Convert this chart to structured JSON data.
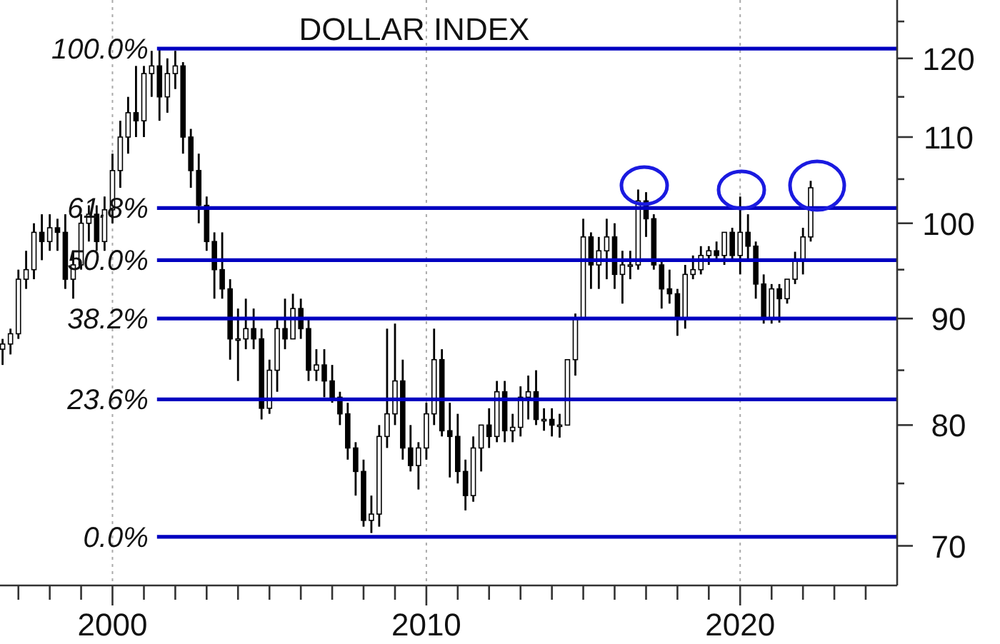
{
  "chart_data": {
    "type": "candlestick",
    "title": "DOLLAR INDEX",
    "log": true,
    "grid": "x",
    "color": "#000000",
    "x": [
      "1996-07",
      "1996-10",
      "1997-01",
      "1997-04",
      "1997-07",
      "1997-10",
      "1998-01",
      "1998-04",
      "1998-07",
      "1998-10",
      "1999-01",
      "1999-04",
      "1999-07",
      "1999-10",
      "2000-01",
      "2000-04",
      "2000-07",
      "2000-10",
      "2001-01",
      "2001-04",
      "2001-07",
      "2001-10",
      "2002-01",
      "2002-04",
      "2002-07",
      "2002-10",
      "2003-01",
      "2003-04",
      "2003-07",
      "2003-10",
      "2004-01",
      "2004-04",
      "2004-07",
      "2004-10",
      "2005-01",
      "2005-04",
      "2005-07",
      "2005-10",
      "2006-01",
      "2006-04",
      "2006-07",
      "2006-10",
      "2007-01",
      "2007-04",
      "2007-07",
      "2007-10",
      "2008-01",
      "2008-04",
      "2008-07",
      "2008-10",
      "2009-01",
      "2009-04",
      "2009-07",
      "2009-10",
      "2010-01",
      "2010-04",
      "2010-07",
      "2010-10",
      "2011-01",
      "2011-04",
      "2011-07",
      "2011-10",
      "2012-01",
      "2012-04",
      "2012-07",
      "2012-10",
      "2013-01",
      "2013-04",
      "2013-07",
      "2013-10",
      "2014-01",
      "2014-04",
      "2014-07",
      "2014-10",
      "2015-01",
      "2015-04",
      "2015-07",
      "2015-10",
      "2016-01",
      "2016-04",
      "2016-07",
      "2016-10",
      "2017-01",
      "2017-04",
      "2017-07",
      "2017-10",
      "2018-01",
      "2018-04",
      "2018-07",
      "2018-10",
      "2019-01",
      "2019-04",
      "2019-07",
      "2019-10",
      "2020-01",
      "2020-04",
      "2020-07",
      "2020-10",
      "2021-01",
      "2021-04",
      "2021-07",
      "2021-10",
      "2022-01",
      "2022-04"
    ],
    "ohlc": [
      [
        87,
        88,
        85.5,
        87.5
      ],
      [
        87.5,
        89,
        86.5,
        88.5
      ],
      [
        88.5,
        95,
        88,
        94
      ],
      [
        94,
        97,
        93,
        95
      ],
      [
        95,
        100,
        94,
        99
      ],
      [
        99,
        101,
        96,
        98
      ],
      [
        98,
        101,
        97,
        99.5
      ],
      [
        99.5,
        100.5,
        97,
        99
      ],
      [
        99,
        101,
        93,
        94
      ],
      [
        94,
        97,
        92,
        95.5
      ],
      [
        95.5,
        101,
        95,
        100
      ],
      [
        100,
        102,
        98,
        101
      ],
      [
        101,
        102,
        97,
        98
      ],
      [
        98,
        103,
        97,
        101.5
      ],
      [
        101.5,
        108,
        100,
        106
      ],
      [
        106,
        112,
        104,
        110
      ],
      [
        110,
        115,
        108,
        113
      ],
      [
        113,
        119,
        110,
        112
      ],
      [
        112,
        119,
        110,
        118
      ],
      [
        118,
        121,
        115,
        119
      ],
      [
        119,
        121.3,
        112,
        115
      ],
      [
        115,
        120,
        113,
        118
      ],
      [
        118,
        121,
        116,
        119
      ],
      [
        119,
        119.5,
        108,
        110
      ],
      [
        110,
        111,
        104,
        106
      ],
      [
        106,
        108,
        100,
        102
      ],
      [
        102,
        103,
        97,
        98
      ],
      [
        98,
        99,
        92,
        95
      ],
      [
        95,
        99,
        92,
        93
      ],
      [
        93,
        94,
        86,
        88
      ],
      [
        88,
        91,
        84,
        88
      ],
      [
        88,
        92,
        87,
        89
      ],
      [
        89,
        91,
        87,
        88
      ],
      [
        88,
        89,
        80.5,
        81.5
      ],
      [
        81.5,
        86,
        81,
        85
      ],
      [
        85,
        90,
        83,
        89
      ],
      [
        89,
        92,
        87,
        88
      ],
      [
        88,
        92.5,
        88,
        91
      ],
      [
        91,
        92,
        88,
        89
      ],
      [
        89,
        90,
        84,
        85
      ],
      [
        85,
        87,
        84,
        85.5
      ],
      [
        85.5,
        87,
        82.5,
        84
      ],
      [
        84,
        85.5,
        82,
        82.5
      ],
      [
        82.5,
        83,
        80,
        81
      ],
      [
        81,
        82,
        77,
        78
      ],
      [
        78,
        78.5,
        74,
        76
      ],
      [
        76,
        77,
        71.5,
        72
      ],
      [
        72,
        74,
        71,
        72.5
      ],
      [
        72.5,
        80,
        71.5,
        79
      ],
      [
        79,
        89,
        78,
        81
      ],
      [
        81,
        89.5,
        80,
        84
      ],
      [
        84,
        86,
        77,
        78
      ],
      [
        78,
        80,
        76,
        76.5
      ],
      [
        76.5,
        78.5,
        74.5,
        78
      ],
      [
        78,
        82,
        77,
        81
      ],
      [
        81,
        89,
        80,
        86
      ],
      [
        86,
        87,
        79,
        79.5
      ],
      [
        79.5,
        82,
        75.5,
        79
      ],
      [
        79,
        81,
        75,
        76
      ],
      [
        76,
        77,
        72.8,
        74
      ],
      [
        74,
        79,
        73.5,
        78
      ],
      [
        78,
        80,
        76,
        80
      ],
      [
        80,
        81.5,
        78,
        79
      ],
      [
        79,
        84,
        78.5,
        83
      ],
      [
        83,
        84,
        78.5,
        79.5
      ],
      [
        79.5,
        81,
        78.5,
        79.8
      ],
      [
        79.8,
        83.5,
        79,
        82.5
      ],
      [
        82.5,
        84.5,
        80.5,
        83
      ],
      [
        83,
        85,
        80,
        80.5
      ],
      [
        80.5,
        81.5,
        79.5,
        80.5
      ],
      [
        80.5,
        81.5,
        79,
        80
      ],
      [
        80,
        81,
        78.9,
        80
      ],
      [
        80,
        86,
        80,
        86
      ],
      [
        86,
        90.5,
        84.5,
        90
      ],
      [
        90,
        100.5,
        90,
        98.5
      ],
      [
        98.5,
        99,
        93,
        95.5
      ],
      [
        95.5,
        98.5,
        93,
        97
      ],
      [
        97,
        100.5,
        94,
        98.5
      ],
      [
        98.5,
        100,
        93,
        94.5
      ],
      [
        94.5,
        97,
        91.5,
        95.5
      ],
      [
        95.5,
        97,
        94,
        95.5
      ],
      [
        95.5,
        103.8,
        95,
        102.5
      ],
      [
        102.5,
        103.5,
        98.5,
        100.5
      ],
      [
        100.5,
        101,
        95,
        95.5
      ],
      [
        95.5,
        96,
        91,
        93
      ],
      [
        93,
        95,
        91.5,
        92.5
      ],
      [
        92.5,
        93,
        88.3,
        90
      ],
      [
        90,
        95.5,
        89,
        94.5
      ],
      [
        94.5,
        96.5,
        94,
        95
      ],
      [
        95,
        97.5,
        94.5,
        96.5
      ],
      [
        96.5,
        97.5,
        95.5,
        97
      ],
      [
        97,
        98,
        96,
        96.5
      ],
      [
        96.5,
        99,
        95.5,
        99
      ],
      [
        99,
        99.5,
        96,
        96.5
      ],
      [
        96.5,
        103,
        94.5,
        99
      ],
      [
        99,
        101,
        96,
        97.5
      ],
      [
        97.5,
        98,
        92,
        93.5
      ],
      [
        93.5,
        94.5,
        89.5,
        90
      ],
      [
        90,
        93.5,
        89.5,
        93
      ],
      [
        93,
        93.5,
        89.6,
        92
      ],
      [
        92,
        94,
        91.5,
        94
      ],
      [
        94,
        96.9,
        93.5,
        96
      ],
      [
        96,
        99.5,
        94.5,
        98.5
      ],
      [
        98.5,
        104.8,
        98,
        104
      ]
    ],
    "xlim": [
      "1996-06",
      "2025-01"
    ],
    "xticks": [
      {
        "value": "1997",
        "label": null
      },
      {
        "value": "1998",
        "label": null
      },
      {
        "value": "1999",
        "label": null
      },
      "2000",
      {
        "value": "2001",
        "label": null
      },
      {
        "value": "2002",
        "label": null
      },
      {
        "value": "2003",
        "label": null
      },
      {
        "value": "2004",
        "label": null
      },
      {
        "value": "2005",
        "label": null
      },
      {
        "value": "2006",
        "label": null
      },
      {
        "value": "2007",
        "label": null
      },
      {
        "value": "2008",
        "label": null
      },
      {
        "value": "2009",
        "label": null
      },
      "2010",
      {
        "value": "2011",
        "label": null
      },
      {
        "value": "2012",
        "label": null
      },
      {
        "value": "2013",
        "label": null
      },
      {
        "value": "2014",
        "label": null
      },
      {
        "value": "2015",
        "label": null
      },
      {
        "value": "2016",
        "label": null
      },
      {
        "value": "2017",
        "label": null
      },
      {
        "value": "2018",
        "label": null
      },
      {
        "value": "2019",
        "label": null
      },
      "2020",
      {
        "value": "2021",
        "label": null
      },
      {
        "value": "2022",
        "label": null
      },
      {
        "value": "2023",
        "label": null
      },
      {
        "value": "2024",
        "label": null
      }
    ],
    "ylim": [
      67,
      128
    ],
    "yticks": [
      70,
      {
        "value": 75,
        "label": null
      },
      80,
      {
        "value": 85,
        "label": null
      },
      90,
      {
        "value": 95,
        "label": null
      },
      100,
      {
        "value": 105,
        "label": null
      },
      110,
      {
        "value": 115,
        "label": null
      },
      120,
      {
        "value": 125,
        "label": null
      }
    ],
    "ref_lines": [
      {
        "axis": "y",
        "value": 121.3,
        "color": "#0000c0"
      },
      {
        "axis": "y",
        "value": 101.7,
        "color": "#0000c0"
      },
      {
        "axis": "y",
        "value": 96,
        "color": "#0000c0"
      },
      {
        "axis": "y",
        "value": 90,
        "color": "#0000c0"
      },
      {
        "axis": "y",
        "value": 82.3,
        "color": "#0000c0"
      },
      {
        "axis": "y",
        "value": 70.7,
        "color": "#0000c0"
      }
    ],
    "annotations": [
      "100.0%",
      "61.8%",
      "50.0%",
      "38.2%",
      "23.6%",
      "0.0%"
    ]
  }
}
